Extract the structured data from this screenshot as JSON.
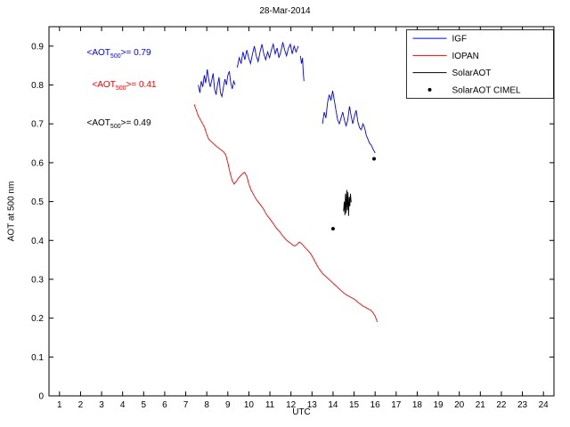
{
  "chart_data": {
    "type": "line",
    "title": "28-Mar-2014",
    "xlabel": "UTC",
    "ylabel": "AOT at 500 nm",
    "xlim": [
      0.5,
      24.5
    ],
    "ylim": [
      0,
      0.95
    ],
    "xticks": [
      1,
      2,
      3,
      4,
      5,
      6,
      7,
      8,
      9,
      10,
      11,
      12,
      13,
      14,
      15,
      16,
      17,
      18,
      19,
      20,
      21,
      22,
      23,
      24
    ],
    "yticks": [
      0,
      0.1,
      0.2,
      0.3,
      0.4,
      0.5,
      0.6,
      0.7,
      0.8,
      0.9
    ],
    "yticklabels": [
      "0",
      "0.1",
      "0.2",
      "0.3",
      "0.4",
      "0.5",
      "0.6",
      "0.7",
      "0.8",
      "0.9"
    ],
    "grid": false,
    "legend": {
      "position": "top-right",
      "entries": [
        {
          "label": "IGF",
          "color": "#0000ff",
          "marker": "line"
        },
        {
          "label": "IOPAN",
          "color": "#ff0000",
          "marker": "line"
        },
        {
          "label": "SolarAOT",
          "color": "#000000",
          "marker": "line"
        },
        {
          "label": "SolarAOT CIMEL",
          "color": "#000000",
          "marker": "dot"
        }
      ]
    },
    "series": [
      {
        "name": "IGF",
        "color": "#0000ff",
        "type": "line",
        "segments": [
          [
            [
              7.6,
              0.8
            ],
            [
              7.67,
              0.78
            ],
            [
              7.74,
              0.81
            ],
            [
              7.81,
              0.795
            ],
            [
              7.88,
              0.825
            ],
            [
              7.95,
              0.805
            ],
            [
              8.02,
              0.84
            ],
            [
              8.09,
              0.815
            ],
            [
              8.16,
              0.795
            ],
            [
              8.23,
              0.81
            ],
            [
              8.3,
              0.83
            ],
            [
              8.37,
              0.79
            ],
            [
              8.44,
              0.775
            ],
            [
              8.51,
              0.8
            ],
            [
              8.58,
              0.82
            ],
            [
              8.65,
              0.78
            ],
            [
              8.72,
              0.77
            ],
            [
              8.79,
              0.795
            ],
            [
              8.86,
              0.815
            ],
            [
              8.93,
              0.8
            ],
            [
              9.0,
              0.825
            ],
            [
              9.07,
              0.835
            ],
            [
              9.14,
              0.805
            ],
            [
              9.21,
              0.79
            ],
            [
              9.28,
              0.81
            ],
            [
              9.35,
              0.8
            ]
          ],
          [
            [
              9.45,
              0.845
            ],
            [
              9.54,
              0.87
            ],
            [
              9.63,
              0.855
            ],
            [
              9.72,
              0.885
            ],
            [
              9.81,
              0.865
            ],
            [
              9.9,
              0.89
            ],
            [
              9.99,
              0.87
            ],
            [
              10.08,
              0.855
            ],
            [
              10.17,
              0.88
            ],
            [
              10.26,
              0.9
            ],
            [
              10.35,
              0.875
            ],
            [
              10.44,
              0.86
            ],
            [
              10.53,
              0.885
            ],
            [
              10.62,
              0.905
            ],
            [
              10.71,
              0.88
            ],
            [
              10.8,
              0.865
            ],
            [
              10.89,
              0.885
            ],
            [
              10.98,
              0.87
            ],
            [
              11.07,
              0.89
            ],
            [
              11.16,
              0.905
            ],
            [
              11.25,
              0.88
            ],
            [
              11.34,
              0.895
            ],
            [
              11.43,
              0.87
            ],
            [
              11.52,
              0.885
            ],
            [
              11.61,
              0.91
            ],
            [
              11.7,
              0.89
            ],
            [
              11.79,
              0.875
            ],
            [
              11.88,
              0.895
            ],
            [
              11.97,
              0.905
            ],
            [
              12.06,
              0.88
            ],
            [
              12.15,
              0.9
            ],
            [
              12.24,
              0.885
            ],
            [
              12.35,
              0.9
            ]
          ],
          [
            [
              12.45,
              0.875
            ],
            [
              12.5,
              0.855
            ],
            [
              12.55,
              0.87
            ],
            [
              12.58,
              0.835
            ],
            [
              12.62,
              0.81
            ]
          ],
          [
            [
              13.5,
              0.7
            ],
            [
              13.58,
              0.73
            ],
            [
              13.66,
              0.715
            ],
            [
              13.74,
              0.755
            ],
            [
              13.82,
              0.775
            ],
            [
              13.9,
              0.76
            ],
            [
              13.98,
              0.785
            ],
            [
              14.06,
              0.76
            ],
            [
              14.14,
              0.735
            ],
            [
              14.22,
              0.71
            ],
            [
              14.3,
              0.7
            ],
            [
              14.38,
              0.715
            ],
            [
              14.46,
              0.73
            ],
            [
              14.54,
              0.71
            ],
            [
              14.62,
              0.695
            ],
            [
              14.7,
              0.71
            ],
            [
              14.78,
              0.745
            ],
            [
              14.86,
              0.72
            ],
            [
              14.94,
              0.7
            ],
            [
              15.02,
              0.72
            ],
            [
              15.1,
              0.735
            ],
            [
              15.18,
              0.705
            ],
            [
              15.26,
              0.69
            ],
            [
              15.34,
              0.685
            ],
            [
              15.42,
              0.7
            ],
            [
              15.5,
              0.69
            ],
            [
              15.58,
              0.67
            ],
            [
              15.66,
              0.66
            ],
            [
              15.74,
              0.65
            ],
            [
              15.82,
              0.645
            ],
            [
              15.9,
              0.635
            ],
            [
              16.0,
              0.625
            ]
          ]
        ]
      },
      {
        "name": "IOPAN",
        "color": "#ff0000",
        "type": "line",
        "segments": [
          [
            [
              7.4,
              0.75
            ],
            [
              7.5,
              0.735
            ],
            [
              7.6,
              0.72
            ],
            [
              7.7,
              0.71
            ],
            [
              7.8,
              0.7
            ],
            [
              7.9,
              0.69
            ],
            [
              8.0,
              0.672
            ],
            [
              8.1,
              0.66
            ],
            [
              8.2,
              0.655
            ],
            [
              8.3,
              0.65
            ],
            [
              8.4,
              0.645
            ],
            [
              8.5,
              0.64
            ],
            [
              8.6,
              0.636
            ],
            [
              8.7,
              0.632
            ],
            [
              8.8,
              0.628
            ],
            [
              8.9,
              0.62
            ],
            [
              9.0,
              0.6
            ],
            [
              9.1,
              0.575
            ],
            [
              9.2,
              0.555
            ],
            [
              9.3,
              0.545
            ],
            [
              9.4,
              0.552
            ],
            [
              9.5,
              0.56
            ],
            [
              9.6,
              0.566
            ],
            [
              9.7,
              0.572
            ],
            [
              9.8,
              0.575
            ],
            [
              9.9,
              0.565
            ],
            [
              10.0,
              0.545
            ],
            [
              10.1,
              0.53
            ],
            [
              10.2,
              0.52
            ],
            [
              10.3,
              0.51
            ],
            [
              10.4,
              0.502
            ],
            [
              10.5,
              0.495
            ],
            [
              10.6,
              0.488
            ],
            [
              10.7,
              0.48
            ],
            [
              10.8,
              0.47
            ],
            [
              10.9,
              0.462
            ],
            [
              11.0,
              0.455
            ],
            [
              11.1,
              0.448
            ],
            [
              11.2,
              0.44
            ],
            [
              11.3,
              0.432
            ],
            [
              11.4,
              0.426
            ],
            [
              11.5,
              0.42
            ],
            [
              11.6,
              0.412
            ],
            [
              11.7,
              0.406
            ],
            [
              11.8,
              0.4
            ],
            [
              11.9,
              0.396
            ],
            [
              12.0,
              0.392
            ],
            [
              12.1,
              0.387
            ],
            [
              12.2,
              0.386
            ],
            [
              12.3,
              0.39
            ],
            [
              12.4,
              0.396
            ],
            [
              12.5,
              0.392
            ],
            [
              12.6,
              0.386
            ],
            [
              12.7,
              0.38
            ],
            [
              12.8,
              0.374
            ],
            [
              12.9,
              0.368
            ],
            [
              13.0,
              0.36
            ],
            [
              13.1,
              0.35
            ],
            [
              13.2,
              0.34
            ],
            [
              13.3,
              0.33
            ],
            [
              13.4,
              0.322
            ],
            [
              13.5,
              0.315
            ],
            [
              13.6,
              0.31
            ],
            [
              13.7,
              0.305
            ],
            [
              13.8,
              0.3
            ],
            [
              13.9,
              0.295
            ],
            [
              14.0,
              0.29
            ],
            [
              14.1,
              0.285
            ],
            [
              14.2,
              0.28
            ],
            [
              14.3,
              0.275
            ],
            [
              14.4,
              0.27
            ],
            [
              14.5,
              0.265
            ],
            [
              14.6,
              0.261
            ],
            [
              14.7,
              0.258
            ],
            [
              14.8,
              0.255
            ],
            [
              14.9,
              0.252
            ],
            [
              15.0,
              0.249
            ],
            [
              15.1,
              0.245
            ],
            [
              15.2,
              0.24
            ],
            [
              15.3,
              0.236
            ],
            [
              15.4,
              0.232
            ],
            [
              15.5,
              0.229
            ],
            [
              15.6,
              0.226
            ],
            [
              15.7,
              0.223
            ],
            [
              15.8,
              0.22
            ],
            [
              15.9,
              0.214
            ],
            [
              16.0,
              0.205
            ],
            [
              16.1,
              0.19
            ]
          ]
        ]
      },
      {
        "name": "SolarAOT",
        "color": "#000000",
        "type": "line",
        "segments": [
          [
            [
              14.5,
              0.475
            ],
            [
              14.53,
              0.5
            ],
            [
              14.56,
              0.465
            ],
            [
              14.59,
              0.52
            ],
            [
              14.62,
              0.47
            ],
            [
              14.65,
              0.53
            ],
            [
              14.68,
              0.478
            ],
            [
              14.71,
              0.525
            ],
            [
              14.74,
              0.463
            ],
            [
              14.77,
              0.512
            ],
            [
              14.8,
              0.488
            ],
            [
              14.83,
              0.52
            ],
            [
              14.86,
              0.498
            ]
          ]
        ]
      },
      {
        "name": "SolarAOT CIMEL",
        "color": "#000000",
        "type": "scatter",
        "points": [
          [
            14.0,
            0.43
          ],
          [
            15.95,
            0.61
          ]
        ]
      }
    ],
    "annotations": [
      {
        "pre": "<AOT",
        "sub": "500",
        "post": ">= 0.79",
        "color": "#0000ff",
        "x": 2.3,
        "y": 0.878
      },
      {
        "pre": "<AOT",
        "sub": "500",
        "post": ">= 0.41",
        "color": "#ff0000",
        "x": 2.55,
        "y": 0.797
      },
      {
        "pre": "<AOT",
        "sub": "500",
        "post": ">= 0.49",
        "color": "#000000",
        "x": 2.3,
        "y": 0.698
      }
    ]
  }
}
